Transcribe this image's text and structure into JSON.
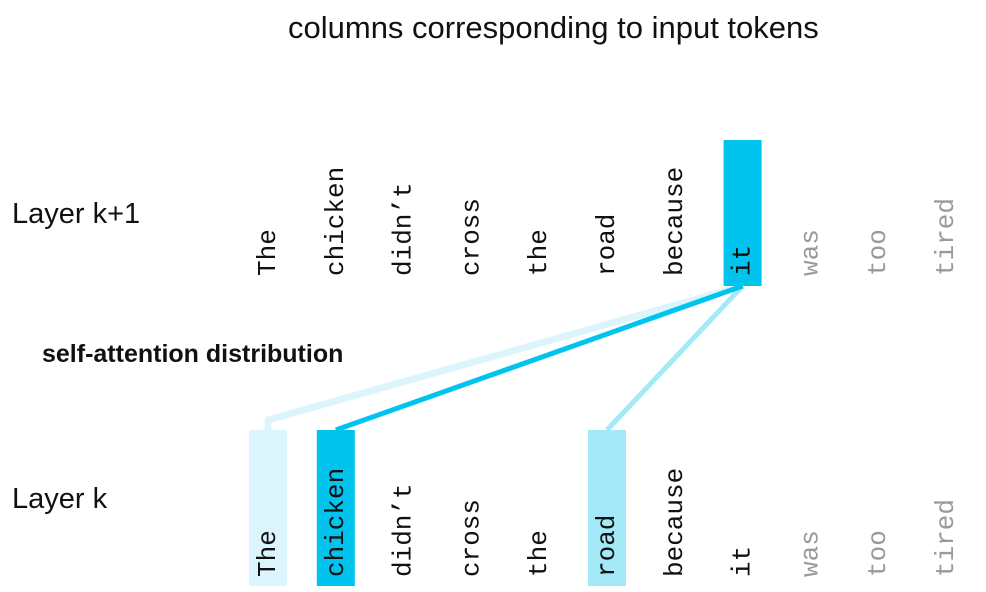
{
  "title": "columns corresponding to input tokens",
  "upper_layer_label": "Layer k+1",
  "lower_layer_label": "Layer k",
  "attention_label": "self-attention distribution",
  "upper_tokens": [
    {
      "text": "The",
      "highlight": "none",
      "faded": false
    },
    {
      "text": "chicken",
      "highlight": "none",
      "faded": false
    },
    {
      "text": "didn’t",
      "highlight": "none",
      "faded": false
    },
    {
      "text": "cross",
      "highlight": "none",
      "faded": false
    },
    {
      "text": "the",
      "highlight": "none",
      "faded": false
    },
    {
      "text": "road",
      "highlight": "none",
      "faded": false
    },
    {
      "text": "because",
      "highlight": "none",
      "faded": false
    },
    {
      "text": "it",
      "highlight": "query",
      "faded": false
    },
    {
      "text": "was",
      "highlight": "none",
      "faded": true
    },
    {
      "text": "too",
      "highlight": "none",
      "faded": true
    },
    {
      "text": "tired",
      "highlight": "none",
      "faded": true
    }
  ],
  "lower_tokens": [
    {
      "text": "The",
      "highlight": "weak",
      "faded": false
    },
    {
      "text": "chicken",
      "highlight": "strong",
      "faded": false
    },
    {
      "text": "didn’t",
      "highlight": "none",
      "faded": false
    },
    {
      "text": "cross",
      "highlight": "none",
      "faded": false
    },
    {
      "text": "the",
      "highlight": "none",
      "faded": false
    },
    {
      "text": "road",
      "highlight": "medium",
      "faded": false
    },
    {
      "text": "because",
      "highlight": "none",
      "faded": false
    },
    {
      "text": "it",
      "highlight": "none",
      "faded": false
    },
    {
      "text": "was",
      "highlight": "none",
      "faded": true
    },
    {
      "text": "too",
      "highlight": "none",
      "faded": true
    },
    {
      "text": "tired",
      "highlight": "none",
      "faded": true
    }
  ],
  "attention_links": [
    {
      "from": 7,
      "to": 0,
      "strength": "weak"
    },
    {
      "from": 7,
      "to": 1,
      "strength": "strong"
    },
    {
      "from": 7,
      "to": 5,
      "strength": "medium"
    }
  ],
  "colors": {
    "text": "#111111",
    "faded_text": "#9a9a9a",
    "query": "#00c3ee",
    "strong": "#00c3ee",
    "medium": "#a3e9f8",
    "weak": "#dcf5fc"
  }
}
